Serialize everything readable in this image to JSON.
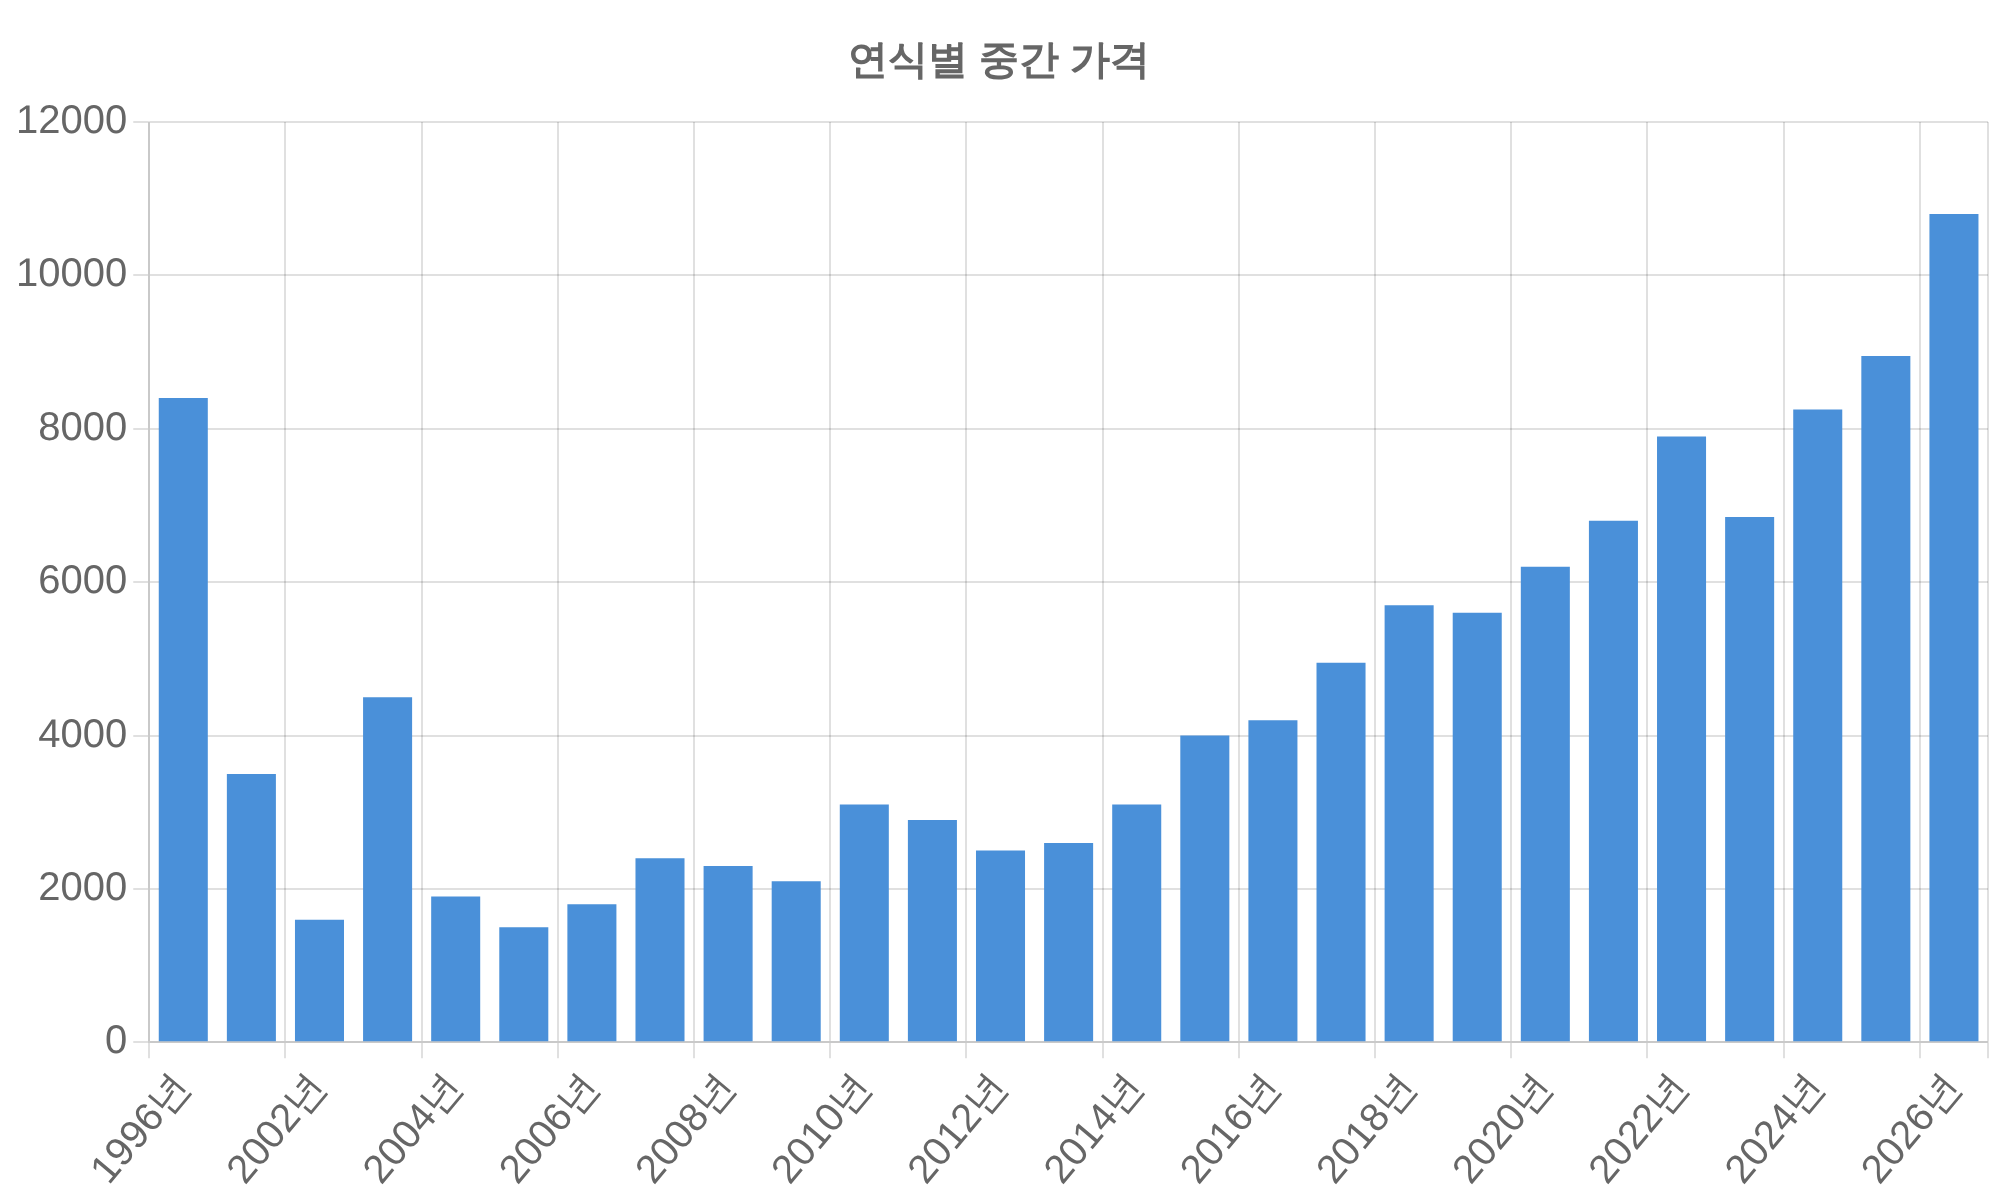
{
  "chart_data": {
    "type": "bar",
    "title": "연식별 중간 가격",
    "categories": [
      "1996년",
      null,
      "2002년",
      null,
      "2004년",
      null,
      "2006년",
      null,
      "2008년",
      null,
      "2010년",
      null,
      "2012년",
      null,
      "2014년",
      null,
      "2016년",
      null,
      "2018년",
      null,
      "2020년",
      null,
      "2022년",
      null,
      "2024년",
      null,
      "2026년"
    ],
    "values": [
      8400,
      3500,
      1600,
      4500,
      1900,
      1500,
      1800,
      2400,
      2300,
      2100,
      3100,
      2900,
      2500,
      2600,
      3100,
      4000,
      4200,
      4950,
      5700,
      5600,
      6200,
      6800,
      7900,
      6850,
      8250,
      8950,
      10800
    ],
    "color": "#4a90d9",
    "ylim": [
      0,
      12000
    ],
    "yticks": [
      0,
      2000,
      4000,
      6000,
      8000,
      10000,
      12000
    ],
    "grid": true,
    "legend": false
  }
}
